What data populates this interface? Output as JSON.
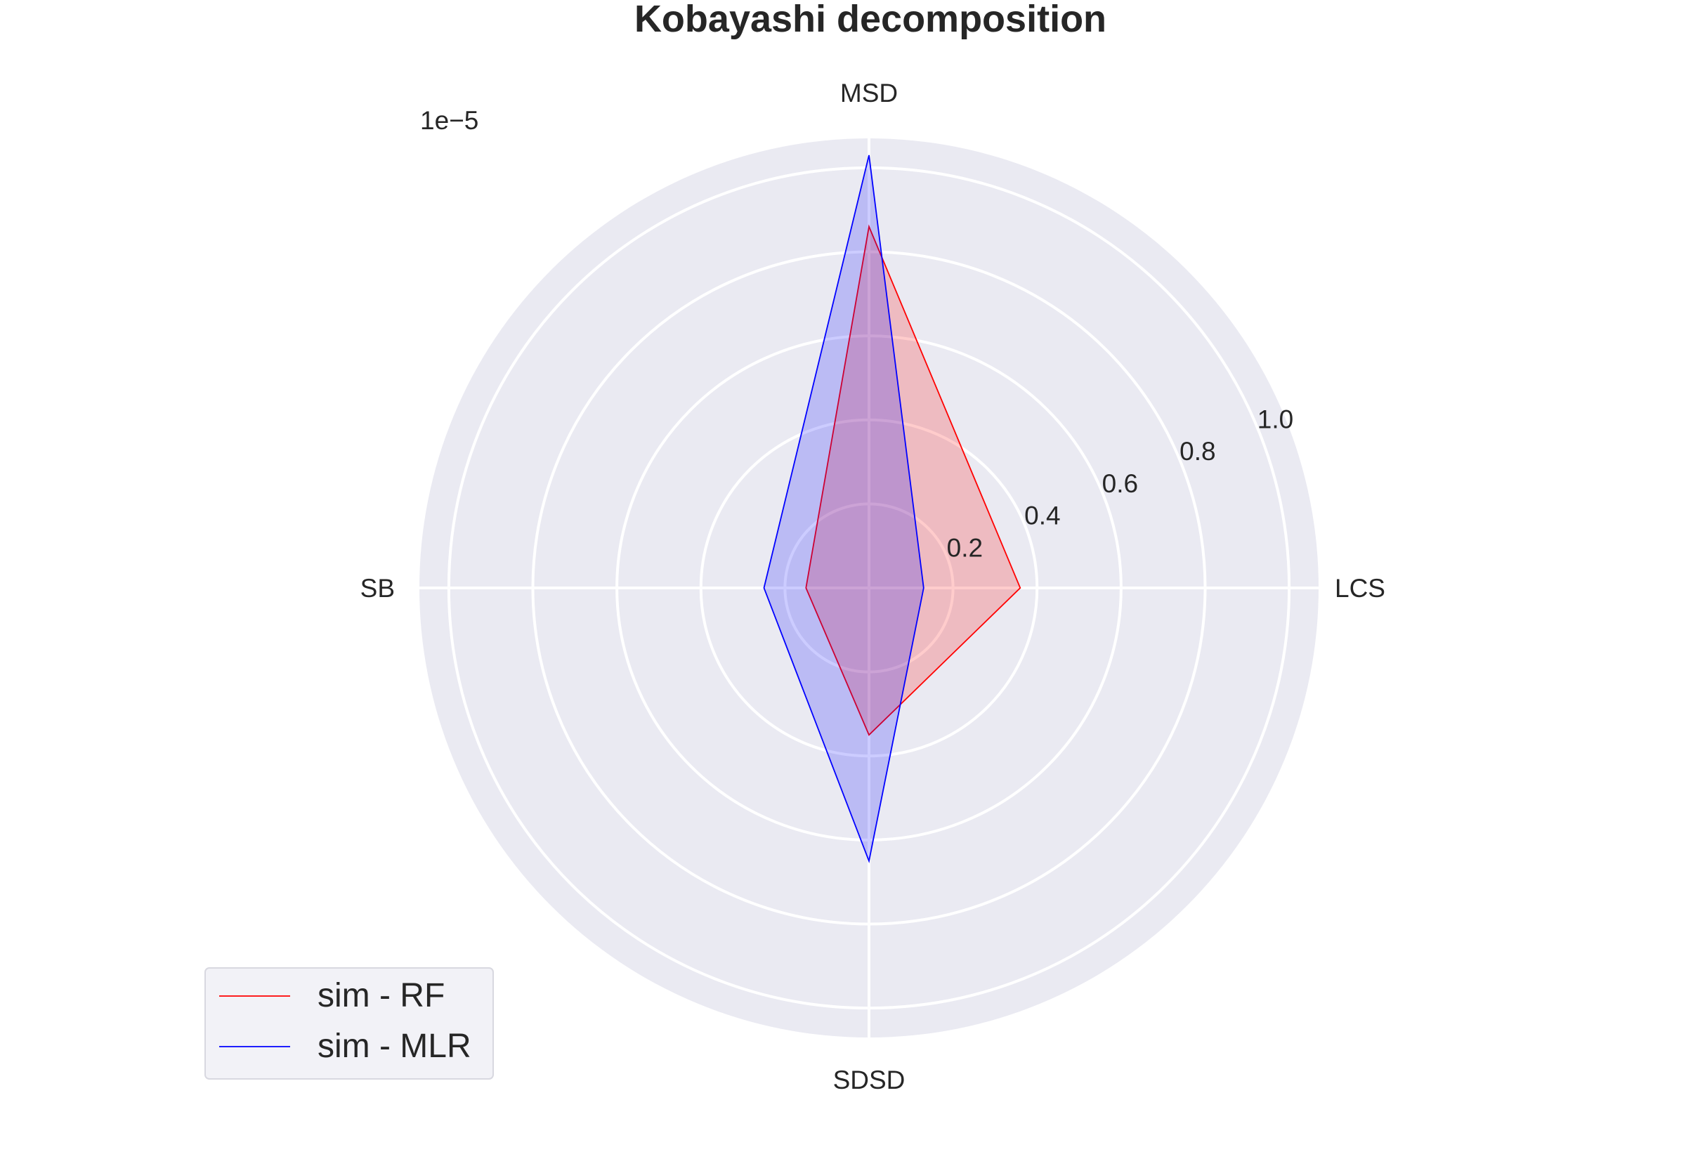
{
  "chart_data": {
    "type": "radar",
    "title": "Kobayashi decomposition",
    "axes": [
      "MSD",
      "LCS",
      "SDSD",
      "SB"
    ],
    "radial_scale_label": "1e−5",
    "radial_ticks": [
      "0.2",
      "0.4",
      "0.6",
      "0.8",
      "1.0"
    ],
    "radial_tick_values": [
      0.2,
      0.4,
      0.6,
      0.8,
      1.0
    ],
    "rlim": [
      0,
      1.07
    ],
    "grid": true,
    "legend_position": "lower-left",
    "series": [
      {
        "name": "sim - RF",
        "color": "#ff0000",
        "fill": "rgba(255,0,0,0.2)",
        "values": [
          0.86,
          0.36,
          0.35,
          0.15
        ]
      },
      {
        "name": "sim - MLR",
        "color": "#0000ff",
        "fill": "rgba(0,0,255,0.2)",
        "values": [
          1.03,
          0.13,
          0.65,
          0.25
        ]
      }
    ],
    "colors": {
      "background": "#eaeaf2",
      "grid": "#ffffff",
      "text": "#262626"
    }
  }
}
